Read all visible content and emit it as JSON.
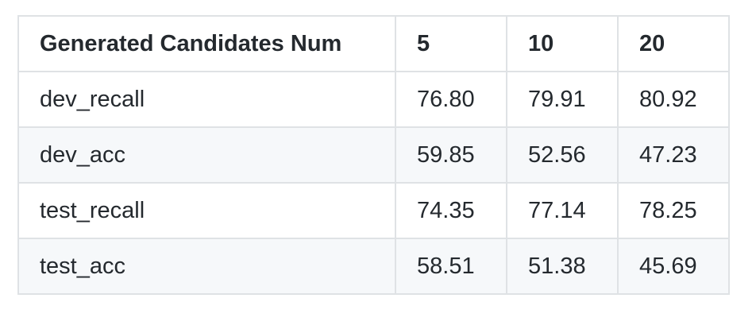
{
  "table": {
    "headers": [
      "Generated Candidates Num",
      "5",
      "10",
      "20"
    ],
    "rows": [
      [
        "dev_recall",
        "76.80",
        "79.91",
        "80.92"
      ],
      [
        "dev_acc",
        "59.85",
        "52.56",
        "47.23"
      ],
      [
        "test_recall",
        "74.35",
        "77.14",
        "78.25"
      ],
      [
        "test_acc",
        "58.51",
        "51.38",
        "45.69"
      ]
    ]
  }
}
